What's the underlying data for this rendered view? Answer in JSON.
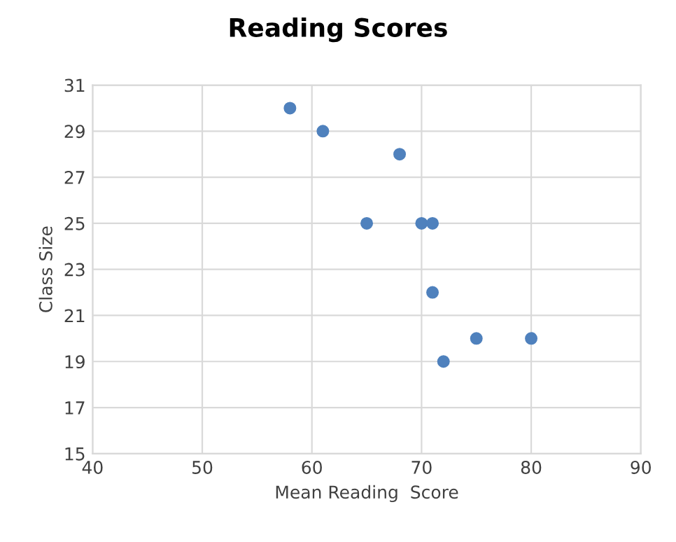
{
  "chart_data": {
    "type": "scatter",
    "title": "Reading Scores",
    "xlabel": "Mean Reading  Score",
    "ylabel": "Class Size",
    "x": [
      58,
      61,
      68,
      65,
      70,
      71,
      71,
      75,
      80,
      72
    ],
    "values": [
      30,
      29,
      28,
      25,
      25,
      25,
      22,
      20,
      20,
      19
    ],
    "color": "#4f81bd",
    "marker": "circle",
    "xlim": [
      40,
      90
    ],
    "xticks": [
      40,
      50,
      60,
      70,
      80,
      90
    ],
    "ylim": [
      15,
      31
    ],
    "yticks": [
      15,
      17,
      19,
      21,
      23,
      25,
      27,
      29,
      31
    ],
    "grid": true
  }
}
